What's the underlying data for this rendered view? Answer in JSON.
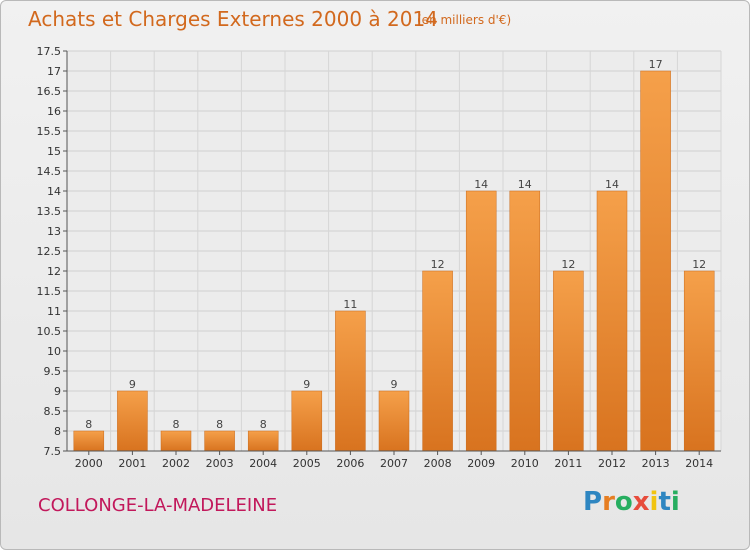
{
  "chart_data": {
    "type": "bar",
    "title": "Achats et Charges Externes 2000 à 2014",
    "subtitle": "(en milliers d'€)",
    "categories": [
      "2000",
      "2001",
      "2002",
      "2003",
      "2004",
      "2005",
      "2006",
      "2007",
      "2008",
      "2009",
      "2010",
      "2011",
      "2012",
      "2013",
      "2014"
    ],
    "values": [
      8,
      9,
      8,
      8,
      8,
      9,
      11,
      9,
      12,
      14,
      14,
      12,
      14,
      17,
      12
    ],
    "data_labels": [
      "8",
      "9",
      "8",
      "8",
      "8",
      "9",
      "11",
      "9",
      "12",
      "14",
      "14",
      "12",
      "14",
      "17",
      "12"
    ],
    "ylim": [
      7.5,
      17.5
    ],
    "yticks": [
      7.5,
      8,
      8.5,
      9,
      9.5,
      10,
      10.5,
      11,
      11.5,
      12,
      12.5,
      13,
      13.5,
      14,
      14.5,
      15,
      15.5,
      16,
      16.5,
      17,
      17.5
    ],
    "ytick_labels": [
      "7.5",
      "8",
      "8.5",
      "9",
      "9.5",
      "10",
      "10.5",
      "11",
      "11.5",
      "12",
      "12.5",
      "13",
      "13.5",
      "14",
      "14.5",
      "15",
      "15.5",
      "16",
      "16.5",
      "17",
      "17.5"
    ],
    "grid": true,
    "bar_color": "#f5a04a",
    "bar_color_dark": "#d8731f"
  },
  "footer": {
    "location": "COLLONGE-LA-MADELEINE",
    "logo_letters": [
      {
        "ch": "P",
        "color": "#2e86c1"
      },
      {
        "ch": "r",
        "color": "#e67e22"
      },
      {
        "ch": "o",
        "color": "#27ae60"
      },
      {
        "ch": "x",
        "color": "#e74c3c"
      },
      {
        "ch": "i",
        "color": "#f1c40f"
      },
      {
        "ch": "t",
        "color": "#2e86c1"
      },
      {
        "ch": "i",
        "color": "#27ae60"
      }
    ]
  }
}
